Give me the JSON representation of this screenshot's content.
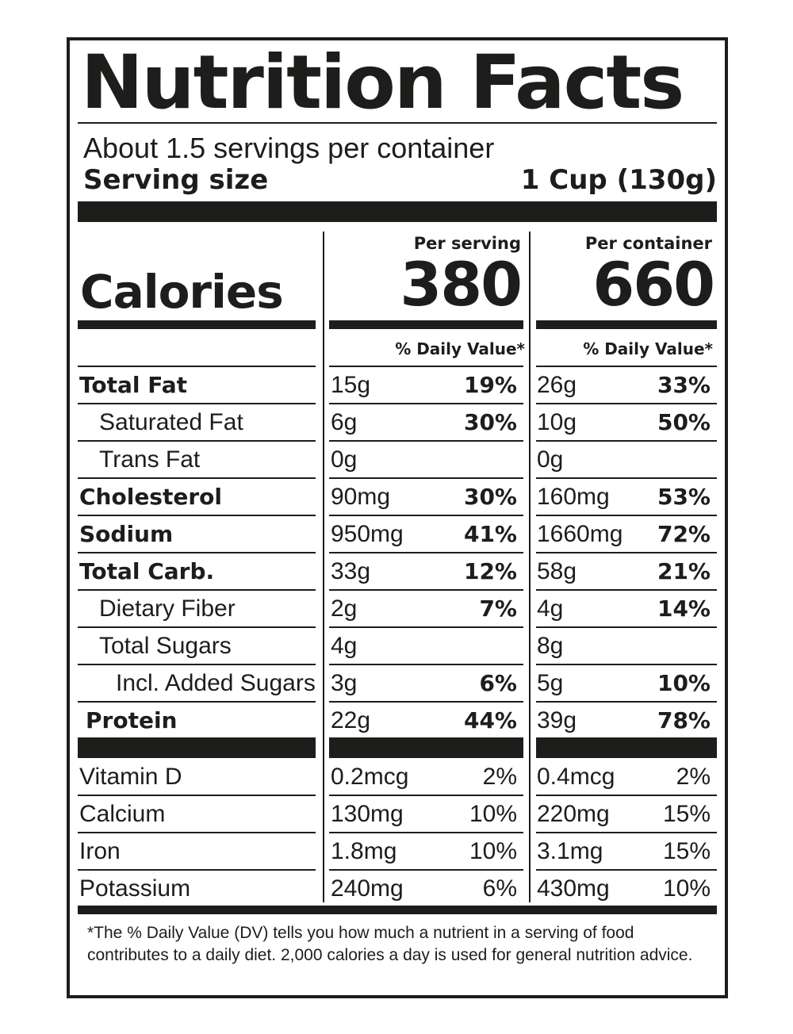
{
  "title": "Nutrition Facts",
  "servings_per_container": "About 1.5 servings per container",
  "serving_size_label": "Serving size",
  "serving_size_value": "1 Cup (130g)",
  "per_serving_label": "Per serving",
  "per_container_label": "Per container",
  "calories_label": "Calories",
  "calories_per_serving": "380",
  "calories_per_container": "660",
  "dv_header": "% Daily Value*",
  "nutrients": [
    {
      "name": "Total Fat",
      "s_amt": "15g",
      "s_dv": "19%",
      "c_amt": "26g",
      "c_dv": "33%"
    },
    {
      "name": "Saturated Fat",
      "s_amt": "6g",
      "s_dv": "30%",
      "c_amt": "10g",
      "c_dv": "50%"
    },
    {
      "name": "Trans Fat",
      "s_amt": "0g",
      "s_dv": "",
      "c_amt": "0g",
      "c_dv": ""
    },
    {
      "name": "Cholesterol",
      "s_amt": "90mg",
      "s_dv": "30%",
      "c_amt": "160mg",
      "c_dv": "53%"
    },
    {
      "name": "Sodium",
      "s_amt": "950mg",
      "s_dv": "41%",
      "c_amt": "1660mg",
      "c_dv": "72%"
    },
    {
      "name": "Total Carb.",
      "s_amt": "33g",
      "s_dv": "12%",
      "c_amt": "58g",
      "c_dv": "21%"
    },
    {
      "name": "Dietary Fiber",
      "s_amt": "2g",
      "s_dv": "7%",
      "c_amt": "4g",
      "c_dv": "14%"
    },
    {
      "name": "Total Sugars",
      "s_amt": "4g",
      "s_dv": "",
      "c_amt": "8g",
      "c_dv": ""
    },
    {
      "name": "Incl. Added Sugars",
      "s_amt": "3g",
      "s_dv": "6%",
      "c_amt": "5g",
      "c_dv": "10%"
    },
    {
      "name": "Protein",
      "s_amt": "22g",
      "s_dv": "44%",
      "c_amt": "39g",
      "c_dv": "78%"
    }
  ],
  "vitamins": [
    {
      "name": "Vitamin D",
      "s_amt": "0.2mcg",
      "s_dv": "2%",
      "c_amt": "0.4mcg",
      "c_dv": "2%"
    },
    {
      "name": "Calcium",
      "s_amt": "130mg",
      "s_dv": "10%",
      "c_amt": "220mg",
      "c_dv": "15%"
    },
    {
      "name": "Iron",
      "s_amt": "1.8mg",
      "s_dv": "10%",
      "c_amt": "3.1mg",
      "c_dv": "15%"
    },
    {
      "name": "Potassium",
      "s_amt": "240mg",
      "s_dv": "6%",
      "c_amt": "430mg",
      "c_dv": "10%"
    }
  ],
  "footnote": "*The % Daily Value (DV) tells you how much a nutrient in a serving of food contributes to a daily diet. 2,000 calories a day is used for general nutrition advice."
}
